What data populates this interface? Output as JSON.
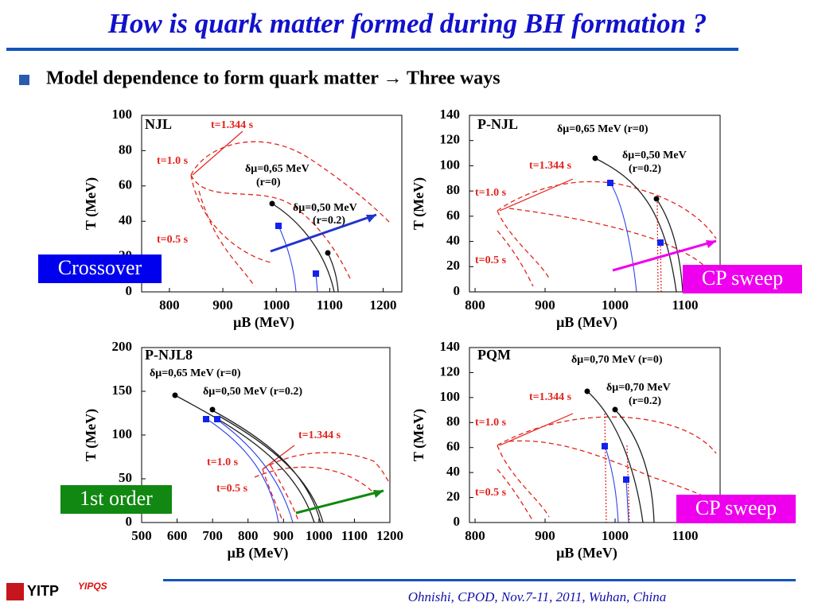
{
  "title": "How is quark matter formed during BH formation ?",
  "bullet": "Model dependence to form quark matter → Three ways",
  "panels": [
    {
      "name": "NJL",
      "xlabel": "μB (MeV)",
      "ylabel": "T (MeV)",
      "xlim": [
        748,
        1235
      ],
      "ylim": [
        0,
        100
      ],
      "xticks": [
        800,
        900,
        1000,
        1100,
        1200
      ],
      "yticks": [
        0,
        20,
        40,
        60,
        80,
        100
      ],
      "annotations": [
        {
          "text": "t=1.344 s",
          "color": "#e3231c"
        },
        {
          "text": "t=1.0 s",
          "color": "#e3231c"
        },
        {
          "text": "t=0.5 s",
          "color": "#e3231c"
        },
        {
          "text": "δμ=0,65 MeV",
          "color": "#000000"
        },
        {
          "text": "(r=0)",
          "color": "#000000"
        },
        {
          "text": "δμ=0,50 MeV",
          "color": "#000000"
        },
        {
          "text": "(r=0.2)",
          "color": "#000000"
        }
      ],
      "badge": {
        "text": "Crossover",
        "color": "#0000ee"
      }
    },
    {
      "name": "P-NJL",
      "xlabel": "μB (MeV)",
      "ylabel": "T (MeV)",
      "xlim": [
        792,
        1150
      ],
      "ylim": [
        0,
        140
      ],
      "xticks": [
        800,
        900,
        1000,
        1100
      ],
      "yticks": [
        0,
        20,
        40,
        60,
        80,
        100,
        120,
        140
      ],
      "annotations": [
        {
          "text": "δμ=0,65 MeV (r=0)",
          "color": "#000000"
        },
        {
          "text": "δμ=0,50 MeV",
          "color": "#000000"
        },
        {
          "text": "(r=0.2)",
          "color": "#000000"
        },
        {
          "text": "t=1.344 s",
          "color": "#e3231c"
        },
        {
          "text": "t=1.0 s",
          "color": "#e3231c"
        },
        {
          "text": "t=0.5 s",
          "color": "#e3231c"
        }
      ],
      "badge": {
        "text": "CP sweep",
        "color": "#ee00ee"
      }
    },
    {
      "name": "P-NJL8",
      "xlabel": "μB (MeV)",
      "ylabel": "T (MeV)",
      "xlim": [
        500,
        1200
      ],
      "ylim": [
        0,
        200
      ],
      "xticks": [
        500,
        600,
        700,
        800,
        900,
        1000,
        1100,
        1200
      ],
      "yticks": [
        0,
        50,
        100,
        150,
        200
      ],
      "annotations": [
        {
          "text": "δμ=0,65 MeV (r=0)",
          "color": "#000000"
        },
        {
          "text": "δμ=0,50 MeV (r=0.2)",
          "color": "#000000"
        },
        {
          "text": "t=1.344 s",
          "color": "#e3231c"
        },
        {
          "text": "t=1.0 s",
          "color": "#e3231c"
        },
        {
          "text": "t=0.5 s",
          "color": "#e3231c"
        }
      ],
      "badge": {
        "text": "1st order",
        "color": "#118811"
      }
    },
    {
      "name": "PQM",
      "xlabel": "μB (MeV)",
      "ylabel": "T (MeV)",
      "xlim": [
        792,
        1150
      ],
      "ylim": [
        0,
        140
      ],
      "xticks": [
        800,
        900,
        1000,
        1100
      ],
      "yticks": [
        0,
        20,
        40,
        60,
        80,
        100,
        120,
        140
      ],
      "annotations": [
        {
          "text": "δμ=0,70 MeV (r=0)",
          "color": "#000000"
        },
        {
          "text": "δμ=0,70 MeV",
          "color": "#000000"
        },
        {
          "text": "(r=0.2)",
          "color": "#000000"
        },
        {
          "text": "t=1.344 s",
          "color": "#e3231c"
        },
        {
          "text": "t=1.0 s",
          "color": "#e3231c"
        },
        {
          "text": "t=0.5 s",
          "color": "#e3231c"
        }
      ],
      "badge": {
        "text": "CP sweep",
        "color": "#ee00ee"
      }
    }
  ],
  "logos": {
    "yitp": "YITP",
    "yipqs": "YIPQS"
  },
  "footer": "Ohnishi, CPOD, Nov.7-11, 2011, Wuhan, China"
}
